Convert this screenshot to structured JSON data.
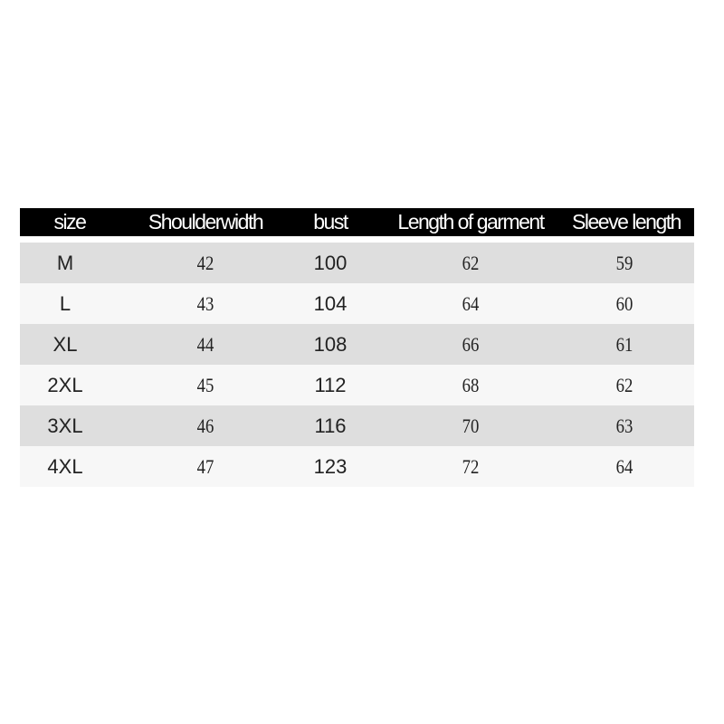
{
  "table": {
    "headers": [
      "size",
      "Shoulderwidth",
      "bust",
      "Length of garment",
      "Sleeve length"
    ],
    "rows": [
      [
        "M",
        "42",
        "100",
        "62",
        "59"
      ],
      [
        "L",
        "43",
        "104",
        "64",
        "60"
      ],
      [
        "XL",
        "44",
        "108",
        "66",
        "61"
      ],
      [
        "2XL",
        "45",
        "112",
        "68",
        "62"
      ],
      [
        "3XL",
        "46",
        "116",
        "70",
        "63"
      ],
      [
        "4XL",
        "47",
        "123",
        "72",
        "64"
      ]
    ]
  },
  "colors": {
    "header_bg": "#000000",
    "header_text": "#ffffff",
    "row_alt": "#dedede",
    "row": "#f7f7f7"
  }
}
